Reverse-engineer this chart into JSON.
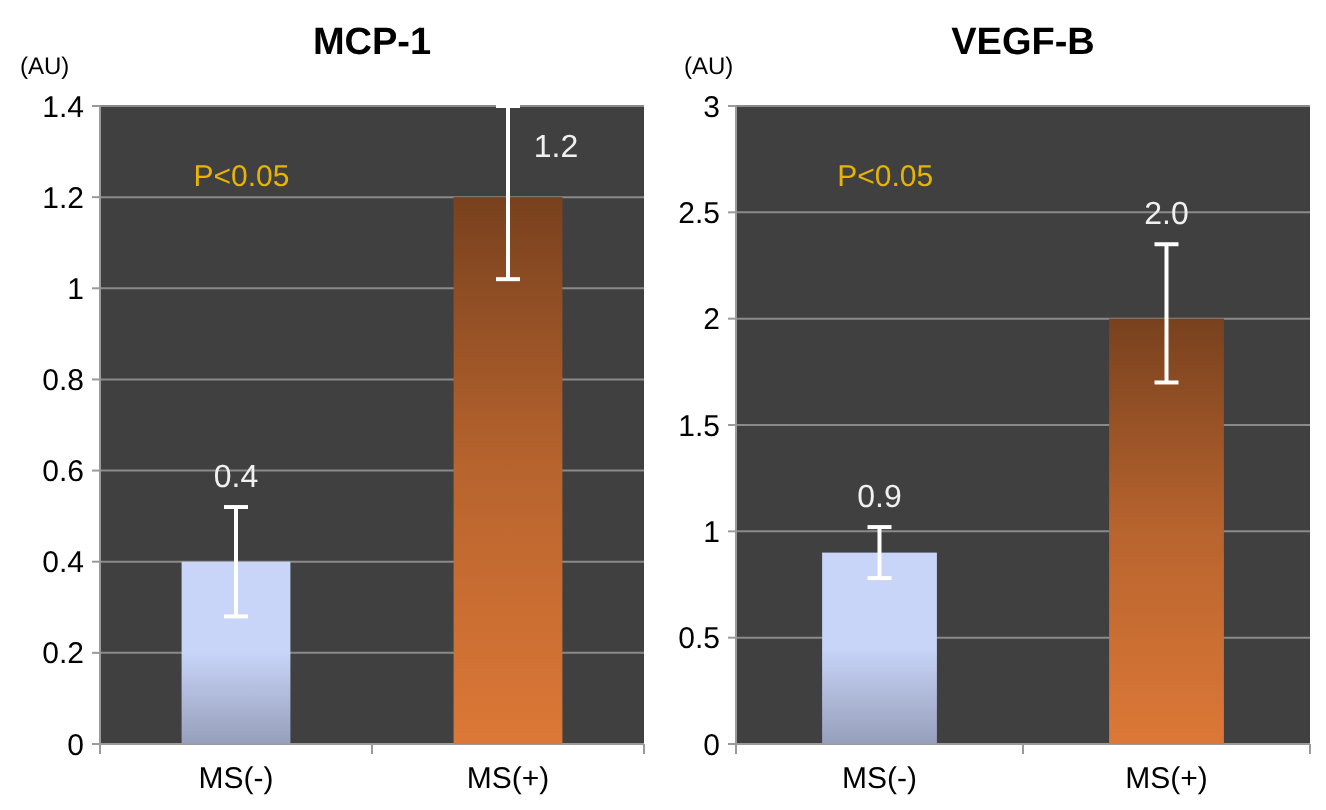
{
  "chart_data": [
    {
      "type": "bar",
      "title": "MCP-1",
      "ylabel": "(AU)",
      "categories": [
        "MS(-)",
        "MS(+)"
      ],
      "values": [
        0.4,
        1.2
      ],
      "colors": [
        "#c8d4f8",
        "#b8642e"
      ],
      "errors": [
        [
          0.28,
          0.52
        ],
        [
          1.02,
          1.4
        ]
      ],
      "data_labels": true,
      "ylim": [
        0,
        1.4
      ],
      "yticks": [
        0,
        0.2,
        0.4,
        0.6,
        0.8,
        1,
        1.2,
        1.4
      ],
      "grid": "y",
      "annotations": [
        "P<0.05"
      ]
    },
    {
      "type": "bar",
      "title": "VEGF-B",
      "ylabel": "(AU)",
      "categories": [
        "MS(-)",
        "MS(+)"
      ],
      "values": [
        0.9,
        2.0
      ],
      "value_labels": [
        "0.9",
        "2.0"
      ],
      "colors": [
        "#c8d4f8",
        "#b8642e"
      ],
      "errors": [
        [
          0.78,
          1.02
        ],
        [
          1.7,
          2.35
        ]
      ],
      "ylim": [
        0,
        3
      ],
      "yticks": [
        0,
        0.5,
        1,
        1.5,
        2,
        2.5,
        3
      ],
      "grid": "y",
      "annotations": [
        "P<0.05"
      ]
    }
  ]
}
